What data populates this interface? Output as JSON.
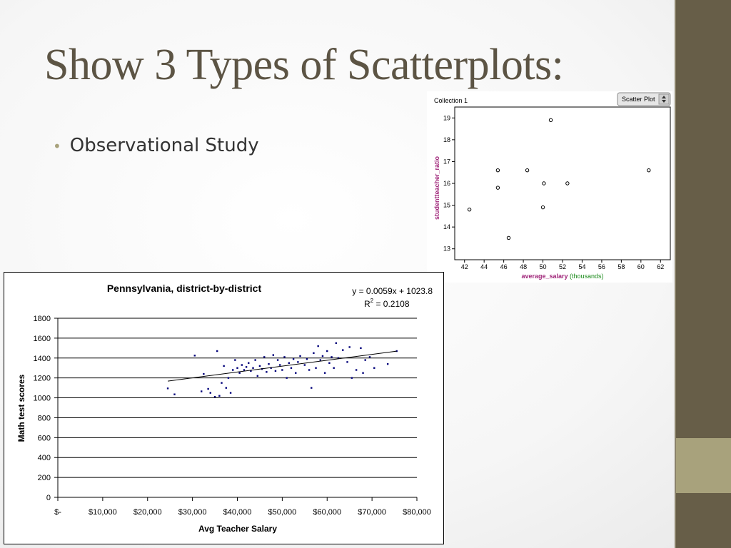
{
  "slide": {
    "title": "Show 3 Types of Scatterplots:",
    "bullet": "Observational Study"
  },
  "colors": {
    "sidebar": "#675e48",
    "accent": "#a8a27c",
    "title": "#5c5444"
  },
  "upper_plot": {
    "collection_label": "Collection 1",
    "plot_type_selector": "Scatter Plot",
    "x_label_main": "average_salary",
    "x_label_unit": "(thousands)",
    "y_label": "studentteacher_ratio"
  },
  "lower_plot": {
    "equation": "y = 0.0059x + 1023.8",
    "r_squared_prefix": "R",
    "r_squared_exp": "2",
    "r_squared_value": " = 0.2108"
  },
  "chart_data": [
    {
      "type": "scatter",
      "title": "",
      "xlabel": "average_salary (thousands)",
      "ylabel": "studentteacher_ratio",
      "xlim": [
        41,
        63
      ],
      "ylim": [
        12.5,
        19.5
      ],
      "x_ticks": [
        42,
        44,
        46,
        48,
        50,
        52,
        54,
        56,
        58,
        60,
        62
      ],
      "y_ticks": [
        13,
        14,
        15,
        16,
        17,
        18,
        19
      ],
      "grid": false,
      "points": [
        {
          "x": 42.5,
          "y": 14.8
        },
        {
          "x": 45.4,
          "y": 15.8
        },
        {
          "x": 45.4,
          "y": 16.6
        },
        {
          "x": 46.5,
          "y": 13.5
        },
        {
          "x": 48.4,
          "y": 16.6
        },
        {
          "x": 50.0,
          "y": 14.9
        },
        {
          "x": 50.1,
          "y": 16.0
        },
        {
          "x": 50.8,
          "y": 18.9
        },
        {
          "x": 52.5,
          "y": 16.0
        },
        {
          "x": 60.8,
          "y": 16.6
        }
      ]
    },
    {
      "type": "scatter",
      "title": "Pennsylvania, district-by-district",
      "xlabel": "Avg Teacher Salary",
      "ylabel": "Math test scores",
      "xlim": [
        0,
        80000
      ],
      "ylim": [
        0,
        1800
      ],
      "x_ticks": [
        0,
        10000,
        20000,
        30000,
        40000,
        50000,
        60000,
        70000,
        80000
      ],
      "x_tick_labels": [
        "$-",
        "$10,000",
        "$20,000",
        "$30,000",
        "$40,000",
        "$50,000",
        "$60,000",
        "$70,000",
        "$80,000"
      ],
      "y_ticks": [
        0,
        200,
        400,
        600,
        800,
        1000,
        1200,
        1400,
        1600,
        1800
      ],
      "grid": true,
      "legend": "none",
      "trendline": {
        "slope": 0.0059,
        "intercept": 1023.8,
        "x_range": [
          24500,
          75500
        ]
      },
      "points": [
        {
          "x": 24500,
          "y": 1095
        },
        {
          "x": 26000,
          "y": 1035
        },
        {
          "x": 30500,
          "y": 1425
        },
        {
          "x": 32000,
          "y": 1065
        },
        {
          "x": 32500,
          "y": 1240
        },
        {
          "x": 33500,
          "y": 1090
        },
        {
          "x": 34000,
          "y": 1050
        },
        {
          "x": 35000,
          "y": 1010
        },
        {
          "x": 35500,
          "y": 1470
        },
        {
          "x": 36000,
          "y": 1020
        },
        {
          "x": 36500,
          "y": 1150
        },
        {
          "x": 37000,
          "y": 1320
        },
        {
          "x": 37500,
          "y": 1100
        },
        {
          "x": 38000,
          "y": 1200
        },
        {
          "x": 38500,
          "y": 1050
        },
        {
          "x": 39000,
          "y": 1280
        },
        {
          "x": 39500,
          "y": 1380
        },
        {
          "x": 40000,
          "y": 1300
        },
        {
          "x": 40500,
          "y": 1250
        },
        {
          "x": 41000,
          "y": 1330
        },
        {
          "x": 41500,
          "y": 1280
        },
        {
          "x": 42000,
          "y": 1310
        },
        {
          "x": 42500,
          "y": 1350
        },
        {
          "x": 43000,
          "y": 1270
        },
        {
          "x": 43500,
          "y": 1300
        },
        {
          "x": 44000,
          "y": 1380
        },
        {
          "x": 44500,
          "y": 1220
        },
        {
          "x": 45000,
          "y": 1320
        },
        {
          "x": 45500,
          "y": 1290
        },
        {
          "x": 46000,
          "y": 1410
        },
        {
          "x": 46500,
          "y": 1260
        },
        {
          "x": 47000,
          "y": 1340
        },
        {
          "x": 47500,
          "y": 1300
        },
        {
          "x": 48000,
          "y": 1430
        },
        {
          "x": 48500,
          "y": 1270
        },
        {
          "x": 49000,
          "y": 1380
        },
        {
          "x": 49500,
          "y": 1330
        },
        {
          "x": 50000,
          "y": 1280
        },
        {
          "x": 50500,
          "y": 1410
        },
        {
          "x": 51000,
          "y": 1200
        },
        {
          "x": 51500,
          "y": 1350
        },
        {
          "x": 52000,
          "y": 1300
        },
        {
          "x": 52500,
          "y": 1390
        },
        {
          "x": 53000,
          "y": 1250
        },
        {
          "x": 53500,
          "y": 1360
        },
        {
          "x": 54000,
          "y": 1420
        },
        {
          "x": 55000,
          "y": 1330
        },
        {
          "x": 55500,
          "y": 1390
        },
        {
          "x": 56000,
          "y": 1280
        },
        {
          "x": 56500,
          "y": 1100
        },
        {
          "x": 57000,
          "y": 1450
        },
        {
          "x": 57500,
          "y": 1300
        },
        {
          "x": 58000,
          "y": 1520
        },
        {
          "x": 58500,
          "y": 1380
        },
        {
          "x": 59000,
          "y": 1420
        },
        {
          "x": 59500,
          "y": 1250
        },
        {
          "x": 60000,
          "y": 1470
        },
        {
          "x": 60500,
          "y": 1350
        },
        {
          "x": 61000,
          "y": 1410
        },
        {
          "x": 61500,
          "y": 1300
        },
        {
          "x": 62000,
          "y": 1550
        },
        {
          "x": 62500,
          "y": 1400
        },
        {
          "x": 63500,
          "y": 1480
        },
        {
          "x": 64500,
          "y": 1360
        },
        {
          "x": 65000,
          "y": 1510
        },
        {
          "x": 65500,
          "y": 1200
        },
        {
          "x": 66500,
          "y": 1280
        },
        {
          "x": 67500,
          "y": 1500
        },
        {
          "x": 68000,
          "y": 1250
        },
        {
          "x": 68500,
          "y": 1380
        },
        {
          "x": 69500,
          "y": 1410
        },
        {
          "x": 70500,
          "y": 1300
        },
        {
          "x": 73500,
          "y": 1340
        },
        {
          "x": 75500,
          "y": 1470
        }
      ]
    }
  ]
}
